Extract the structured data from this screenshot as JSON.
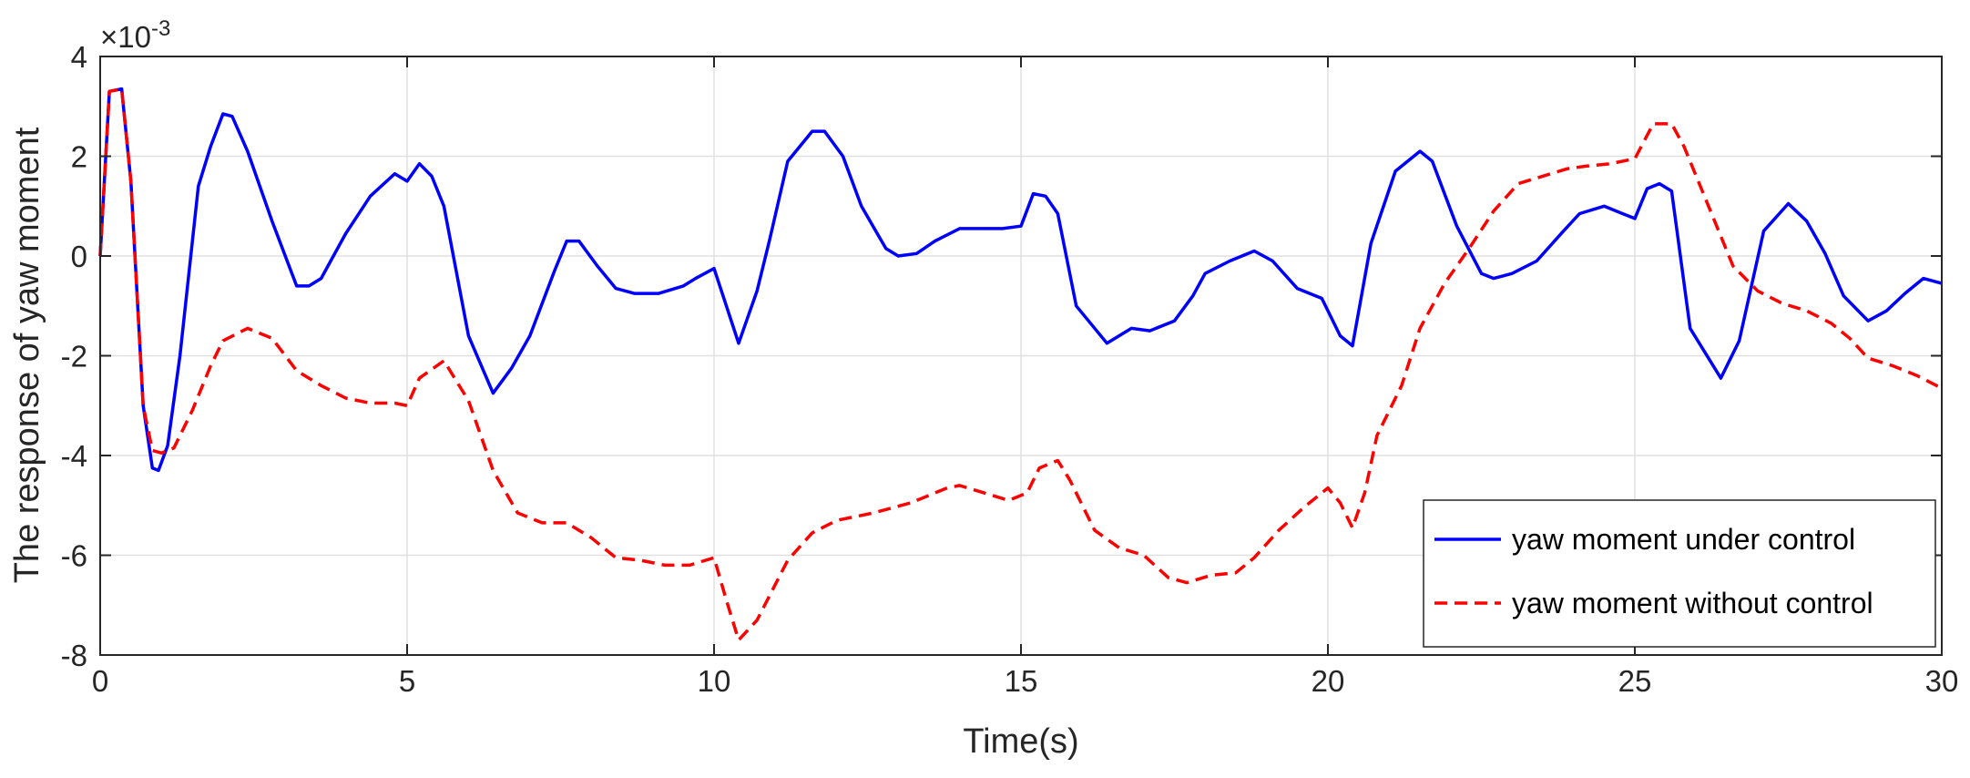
{
  "chart_data": {
    "type": "line",
    "xlabel": "Time(s)",
    "ylabel": "The response of yaw moment",
    "y_multiplier_base": "×10",
    "y_multiplier_exponent": "-3",
    "xlim": [
      0,
      30
    ],
    "ylim": [
      -8,
      4
    ],
    "x_ticks": [
      0,
      5,
      10,
      15,
      20,
      25,
      30
    ],
    "y_ticks": [
      -8,
      -6,
      -4,
      -2,
      0,
      2,
      4
    ],
    "grid": true,
    "legend_position": "bottom-right",
    "colors": {
      "controlled": "#0000ff",
      "uncontrolled": "#ff0000",
      "grid": "#e0e0e0",
      "axes": "#262626"
    },
    "series": [
      {
        "name": "yaw moment under control",
        "style": "solid",
        "points": [
          [
            0,
            0
          ],
          [
            0.15,
            3.3
          ],
          [
            0.35,
            3.35
          ],
          [
            0.5,
            1.5
          ],
          [
            0.7,
            -3.0
          ],
          [
            0.85,
            -4.25
          ],
          [
            0.95,
            -4.3
          ],
          [
            1.1,
            -3.8
          ],
          [
            1.3,
            -2.0
          ],
          [
            1.6,
            1.4
          ],
          [
            1.8,
            2.2
          ],
          [
            2.0,
            2.85
          ],
          [
            2.15,
            2.8
          ],
          [
            2.4,
            2.1
          ],
          [
            2.8,
            0.7
          ],
          [
            3.2,
            -0.6
          ],
          [
            3.4,
            -0.6
          ],
          [
            3.6,
            -0.45
          ],
          [
            4.0,
            0.45
          ],
          [
            4.4,
            1.2
          ],
          [
            4.8,
            1.65
          ],
          [
            5.0,
            1.5
          ],
          [
            5.2,
            1.85
          ],
          [
            5.4,
            1.6
          ],
          [
            5.6,
            1.0
          ],
          [
            6.0,
            -1.6
          ],
          [
            6.4,
            -2.75
          ],
          [
            6.7,
            -2.25
          ],
          [
            7.0,
            -1.6
          ],
          [
            7.4,
            -0.3
          ],
          [
            7.6,
            0.3
          ],
          [
            7.8,
            0.3
          ],
          [
            8.1,
            -0.2
          ],
          [
            8.4,
            -0.65
          ],
          [
            8.7,
            -0.75
          ],
          [
            9.1,
            -0.75
          ],
          [
            9.5,
            -0.6
          ],
          [
            9.7,
            -0.45
          ],
          [
            10.0,
            -0.25
          ],
          [
            10.4,
            -1.75
          ],
          [
            10.7,
            -0.7
          ],
          [
            10.9,
            0.3
          ],
          [
            11.2,
            1.9
          ],
          [
            11.6,
            2.5
          ],
          [
            11.8,
            2.5
          ],
          [
            12.1,
            2.0
          ],
          [
            12.4,
            1.0
          ],
          [
            12.8,
            0.15
          ],
          [
            13.0,
            0.0
          ],
          [
            13.3,
            0.05
          ],
          [
            13.6,
            0.3
          ],
          [
            14.0,
            0.55
          ],
          [
            14.4,
            0.55
          ],
          [
            14.7,
            0.55
          ],
          [
            15.0,
            0.6
          ],
          [
            15.2,
            1.25
          ],
          [
            15.4,
            1.2
          ],
          [
            15.6,
            0.85
          ],
          [
            15.9,
            -1.0
          ],
          [
            16.4,
            -1.75
          ],
          [
            16.8,
            -1.45
          ],
          [
            17.1,
            -1.5
          ],
          [
            17.5,
            -1.3
          ],
          [
            17.8,
            -0.8
          ],
          [
            18.0,
            -0.35
          ],
          [
            18.4,
            -0.1
          ],
          [
            18.8,
            0.1
          ],
          [
            19.1,
            -0.1
          ],
          [
            19.5,
            -0.65
          ],
          [
            19.9,
            -0.85
          ],
          [
            20.2,
            -1.6
          ],
          [
            20.4,
            -1.8
          ],
          [
            20.7,
            0.25
          ],
          [
            21.1,
            1.7
          ],
          [
            21.5,
            2.1
          ],
          [
            21.7,
            1.9
          ],
          [
            22.1,
            0.6
          ],
          [
            22.5,
            -0.35
          ],
          [
            22.7,
            -0.45
          ],
          [
            23.0,
            -0.35
          ],
          [
            23.4,
            -0.1
          ],
          [
            23.8,
            0.45
          ],
          [
            24.1,
            0.85
          ],
          [
            24.5,
            1.0
          ],
          [
            24.8,
            0.85
          ],
          [
            25.0,
            0.75
          ],
          [
            25.2,
            1.35
          ],
          [
            25.4,
            1.45
          ],
          [
            25.6,
            1.3
          ],
          [
            25.9,
            -1.45
          ],
          [
            26.4,
            -2.45
          ],
          [
            26.7,
            -1.7
          ],
          [
            27.1,
            0.5
          ],
          [
            27.5,
            1.05
          ],
          [
            27.8,
            0.7
          ],
          [
            28.1,
            0.05
          ],
          [
            28.4,
            -0.8
          ],
          [
            28.8,
            -1.3
          ],
          [
            29.1,
            -1.1
          ],
          [
            29.4,
            -0.75
          ],
          [
            29.7,
            -0.45
          ],
          [
            30.0,
            -0.55
          ]
        ]
      },
      {
        "name": "yaw moment without control",
        "style": "dashed",
        "points": [
          [
            0,
            0
          ],
          [
            0.15,
            3.3
          ],
          [
            0.35,
            3.35
          ],
          [
            0.5,
            1.5
          ],
          [
            0.7,
            -3.0
          ],
          [
            0.85,
            -3.9
          ],
          [
            1.0,
            -3.95
          ],
          [
            1.2,
            -3.85
          ],
          [
            1.5,
            -3.1
          ],
          [
            1.8,
            -2.2
          ],
          [
            2.0,
            -1.7
          ],
          [
            2.4,
            -1.45
          ],
          [
            2.8,
            -1.65
          ],
          [
            3.2,
            -2.3
          ],
          [
            3.6,
            -2.6
          ],
          [
            4.0,
            -2.85
          ],
          [
            4.4,
            -2.95
          ],
          [
            4.8,
            -2.95
          ],
          [
            5.0,
            -3.0
          ],
          [
            5.2,
            -2.45
          ],
          [
            5.6,
            -2.1
          ],
          [
            6.0,
            -2.9
          ],
          [
            6.4,
            -4.3
          ],
          [
            6.8,
            -5.15
          ],
          [
            7.2,
            -5.35
          ],
          [
            7.6,
            -5.35
          ],
          [
            8.0,
            -5.65
          ],
          [
            8.4,
            -6.05
          ],
          [
            8.8,
            -6.1
          ],
          [
            9.2,
            -6.2
          ],
          [
            9.6,
            -6.2
          ],
          [
            10.0,
            -6.05
          ],
          [
            10.2,
            -6.9
          ],
          [
            10.4,
            -7.7
          ],
          [
            10.7,
            -7.3
          ],
          [
            11.2,
            -6.1
          ],
          [
            11.6,
            -5.55
          ],
          [
            12.0,
            -5.3
          ],
          [
            12.6,
            -5.15
          ],
          [
            13.2,
            -4.95
          ],
          [
            13.8,
            -4.65
          ],
          [
            14.0,
            -4.6
          ],
          [
            14.4,
            -4.75
          ],
          [
            14.8,
            -4.9
          ],
          [
            15.1,
            -4.75
          ],
          [
            15.3,
            -4.25
          ],
          [
            15.6,
            -4.1
          ],
          [
            15.8,
            -4.5
          ],
          [
            16.2,
            -5.5
          ],
          [
            16.6,
            -5.85
          ],
          [
            17.0,
            -6.0
          ],
          [
            17.4,
            -6.45
          ],
          [
            17.7,
            -6.55
          ],
          [
            18.1,
            -6.4
          ],
          [
            18.5,
            -6.35
          ],
          [
            18.8,
            -6.05
          ],
          [
            19.2,
            -5.5
          ],
          [
            19.6,
            -5.05
          ],
          [
            20.0,
            -4.65
          ],
          [
            20.2,
            -4.95
          ],
          [
            20.4,
            -5.45
          ],
          [
            20.6,
            -4.75
          ],
          [
            20.8,
            -3.6
          ],
          [
            21.2,
            -2.6
          ],
          [
            21.5,
            -1.45
          ],
          [
            21.9,
            -0.55
          ],
          [
            22.3,
            0.15
          ],
          [
            22.7,
            0.9
          ],
          [
            23.1,
            1.45
          ],
          [
            23.5,
            1.6
          ],
          [
            23.9,
            1.75
          ],
          [
            24.2,
            1.8
          ],
          [
            24.6,
            1.85
          ],
          [
            25.0,
            1.95
          ],
          [
            25.3,
            2.65
          ],
          [
            25.6,
            2.65
          ],
          [
            25.8,
            2.2
          ],
          [
            26.2,
            1.0
          ],
          [
            26.6,
            -0.2
          ],
          [
            27.0,
            -0.7
          ],
          [
            27.4,
            -0.95
          ],
          [
            27.8,
            -1.1
          ],
          [
            28.2,
            -1.35
          ],
          [
            28.5,
            -1.65
          ],
          [
            28.8,
            -2.05
          ],
          [
            29.2,
            -2.2
          ],
          [
            29.6,
            -2.4
          ],
          [
            30.0,
            -2.65
          ]
        ]
      }
    ]
  }
}
